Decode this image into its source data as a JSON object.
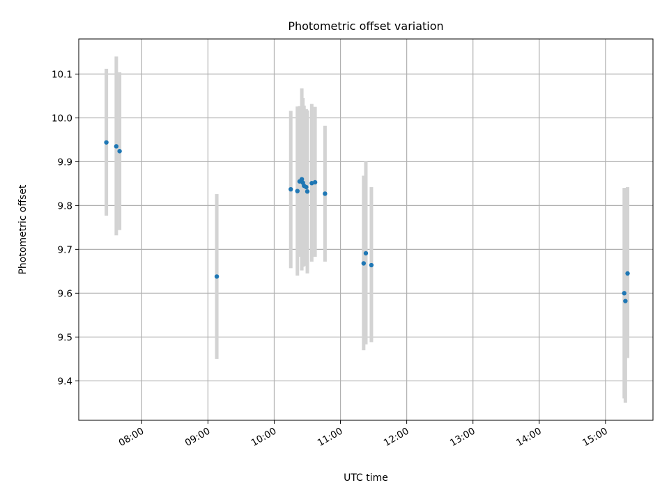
{
  "chart_data": {
    "type": "scatter",
    "title": "Photometric offset variation",
    "xlabel": "UTC time",
    "ylabel": "Photometric offset",
    "x_unit": "UTC time (HH:MM)",
    "xlim": [
      "07:03",
      "15:43"
    ],
    "ylim": [
      9.31,
      10.18
    ],
    "x_ticks": [
      "08:00",
      "09:00",
      "10:00",
      "11:00",
      "12:00",
      "13:00",
      "14:00",
      "15:00"
    ],
    "y_ticks": [
      "9.4",
      "9.5",
      "9.6",
      "9.7",
      "9.8",
      "9.9",
      "10.0",
      "10.1"
    ],
    "y_tick_values": [
      9.4,
      9.5,
      9.6,
      9.7,
      9.8,
      9.9,
      10.0,
      10.1
    ],
    "grid": true,
    "point_color": "#1f77b4",
    "errorbar_color": "#d3d3d3",
    "series": [
      {
        "points": [
          {
            "x": "07:28",
            "y": 9.944,
            "ylow": 9.777,
            "yhigh": 10.112
          },
          {
            "x": "07:37",
            "y": 9.935,
            "ylow": 9.732,
            "yhigh": 10.14
          },
          {
            "x": "07:40",
            "y": 9.924,
            "ylow": 9.744,
            "yhigh": 10.104
          },
          {
            "x": "09:08",
            "y": 9.638,
            "ylow": 9.45,
            "yhigh": 9.826
          },
          {
            "x": "10:15",
            "y": 9.837,
            "ylow": 9.657,
            "yhigh": 10.016
          },
          {
            "x": "10:21",
            "y": 9.833,
            "ylow": 9.64,
            "yhigh": 10.026
          },
          {
            "x": "10:23",
            "y": 9.855,
            "ylow": 9.683,
            "yhigh": 10.027
          },
          {
            "x": "10:25",
            "y": 9.86,
            "ylow": 9.652,
            "yhigh": 10.067
          },
          {
            "x": "10:26",
            "y": 9.852,
            "ylow": 9.66,
            "yhigh": 10.045
          },
          {
            "x": "10:27",
            "y": 9.845,
            "ylow": 9.662,
            "yhigh": 10.028
          },
          {
            "x": "10:29",
            "y": 9.842,
            "ylow": 9.665,
            "yhigh": 10.02
          },
          {
            "x": "10:30",
            "y": 9.832,
            "ylow": 9.645,
            "yhigh": 10.017
          },
          {
            "x": "10:34",
            "y": 9.851,
            "ylow": 9.672,
            "yhigh": 10.032
          },
          {
            "x": "10:37",
            "y": 9.853,
            "ylow": 9.683,
            "yhigh": 10.025
          },
          {
            "x": "10:46",
            "y": 9.827,
            "ylow": 9.672,
            "yhigh": 9.982
          },
          {
            "x": "11:21",
            "y": 9.668,
            "ylow": 9.47,
            "yhigh": 9.868
          },
          {
            "x": "11:23",
            "y": 9.691,
            "ylow": 9.483,
            "yhigh": 9.9
          },
          {
            "x": "11:28",
            "y": 9.664,
            "ylow": 9.488,
            "yhigh": 9.842
          },
          {
            "x": "15:17",
            "y": 9.6,
            "ylow": 9.36,
            "yhigh": 9.84
          },
          {
            "x": "15:18",
            "y": 9.582,
            "ylow": 9.35,
            "yhigh": 9.84
          },
          {
            "x": "15:20",
            "y": 9.645,
            "ylow": 9.452,
            "yhigh": 9.842
          }
        ]
      }
    ]
  }
}
